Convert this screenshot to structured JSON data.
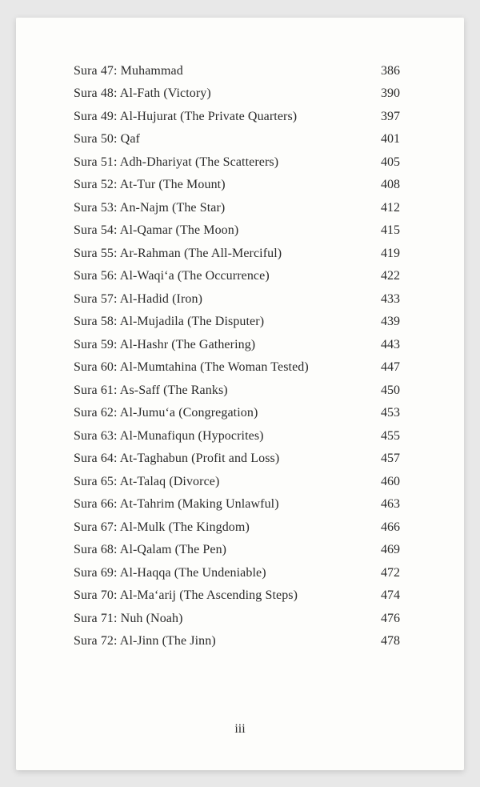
{
  "toc": {
    "entries": [
      {
        "title": "Sura 47: Muhammad",
        "page": "386"
      },
      {
        "title": "Sura 48: Al-Fath (Victory)",
        "page": "390"
      },
      {
        "title": "Sura 49: Al-Hujurat (The Private Quarters)",
        "page": "397"
      },
      {
        "title": "Sura 50: Qaf",
        "page": "401"
      },
      {
        "title": "Sura 51: Adh-Dhariyat (The Scatterers)",
        "page": "405"
      },
      {
        "title": "Sura 52: At-Tur (The Mount)",
        "page": "408"
      },
      {
        "title": "Sura 53: An-Najm (The Star)",
        "page": "412"
      },
      {
        "title": "Sura 54: Al-Qamar (The Moon)",
        "page": "415"
      },
      {
        "title": "Sura 55: Ar-Rahman (The All-Merciful)",
        "page": "419"
      },
      {
        "title": "Sura 56: Al-Waqi‘a (The Occurrence)",
        "page": "422"
      },
      {
        "title": "Sura 57: Al-Hadid (Iron)",
        "page": "433"
      },
      {
        "title": "Sura 58: Al-Mujadila (The Disputer)",
        "page": "439"
      },
      {
        "title": "Sura 59: Al-Hashr (The Gathering)",
        "page": "443"
      },
      {
        "title": "Sura 60: Al-Mumtahina (The Woman Tested)",
        "page": "447"
      },
      {
        "title": "Sura 61: As-Saff (The Ranks)",
        "page": "450"
      },
      {
        "title": "Sura 62: Al-Jumu‘a (Congregation)",
        "page": "453"
      },
      {
        "title": "Sura 63: Al-Munafiqun (Hypocrites)",
        "page": "455"
      },
      {
        "title": "Sura 64: At-Taghabun (Profit and Loss)",
        "page": "457"
      },
      {
        "title": "Sura 65: At-Talaq (Divorce)",
        "page": "460"
      },
      {
        "title": "Sura 66: At-Tahrim (Making Unlawful)",
        "page": "463"
      },
      {
        "title": "Sura 67: Al-Mulk (The Kingdom)",
        "page": "466"
      },
      {
        "title": "Sura 68: Al-Qalam (The Pen)",
        "page": "469"
      },
      {
        "title": "Sura 69: Al-Haqqa (The Undeniable)",
        "page": "472"
      },
      {
        "title": "Sura 70: Al-Ma‘arij (The Ascending Steps)",
        "page": "474"
      },
      {
        "title": "Sura 71: Nuh (Noah)",
        "page": "476"
      },
      {
        "title": "Sura 72: Al-Jinn (The Jinn)",
        "page": "478"
      }
    ]
  },
  "page_number": "iii"
}
